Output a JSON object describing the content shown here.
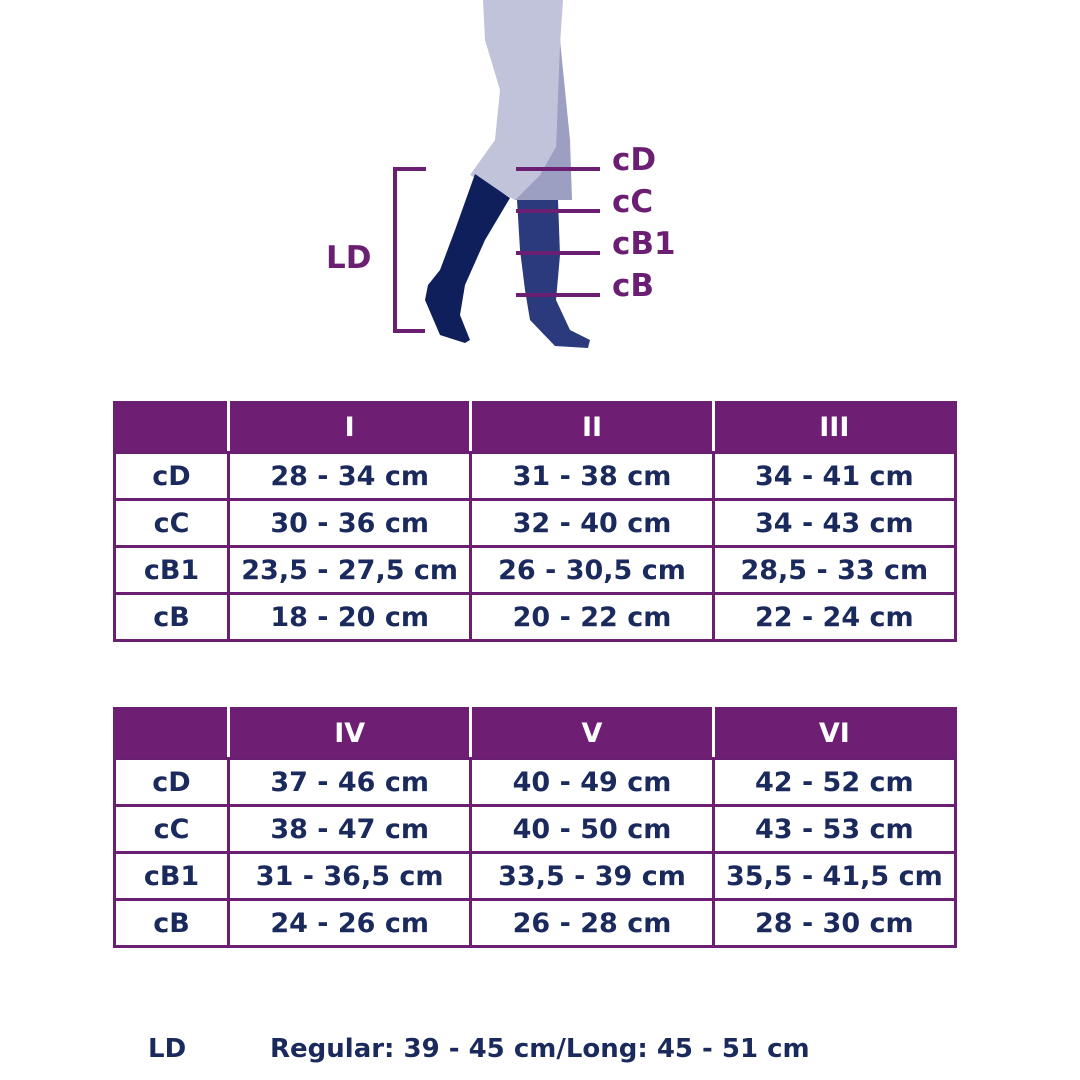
{
  "diagram": {
    "labels": {
      "length": "LD",
      "cD": "cD",
      "cC": "cC",
      "cB1": "cB1",
      "cB": "cB"
    },
    "colors": {
      "accent": "#6b1f72",
      "leg": "#c0c3da",
      "back_leg": "#9c9ec2",
      "sock_front": "#0f1f5c",
      "sock_back": "#2b3a7c"
    }
  },
  "tables": [
    {
      "headers": [
        "",
        "I",
        "II",
        "III"
      ],
      "rows": [
        {
          "label": "cD",
          "values": [
            "28 - 34 cm",
            "31 - 38 cm",
            "34 - 41 cm"
          ]
        },
        {
          "label": "cC",
          "values": [
            "30 - 36 cm",
            "32 - 40 cm",
            "34 - 43 cm"
          ]
        },
        {
          "label": "cB1",
          "values": [
            "23,5 - 27,5 cm",
            "26 - 30,5 cm",
            "28,5 - 33 cm"
          ]
        },
        {
          "label": "cB",
          "values": [
            "18 - 20 cm",
            "20 - 22 cm",
            "22 - 24 cm"
          ]
        }
      ]
    },
    {
      "headers": [
        "",
        "IV",
        "V",
        "VI"
      ],
      "rows": [
        {
          "label": "cD",
          "values": [
            "37 - 46 cm",
            "40 - 49 cm",
            "42 - 52 cm"
          ]
        },
        {
          "label": "cC",
          "values": [
            "38 - 47 cm",
            "40 - 50 cm",
            "43 - 53 cm"
          ]
        },
        {
          "label": "cB1",
          "values": [
            "31 - 36,5 cm",
            "33,5 - 39 cm",
            "35,5 - 41,5 cm"
          ]
        },
        {
          "label": "cB",
          "values": [
            "24 - 26 cm",
            "26 - 28 cm",
            "28 - 30 cm"
          ]
        }
      ]
    }
  ],
  "footer": {
    "label": "LD",
    "text": "Regular: 39 - 45 cm/Long: 45 - 51 cm"
  }
}
